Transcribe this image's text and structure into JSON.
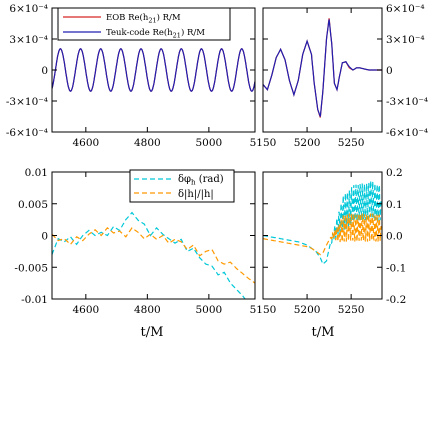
{
  "chart_data": [
    {
      "panel": "top-left",
      "type": "line",
      "xlim": [
        4490,
        5150
      ],
      "ylim": [
        -0.0006,
        0.0006
      ],
      "xticks": [
        {
          "value": 4600,
          "label": "4600"
        },
        {
          "value": 4800,
          "label": "4800"
        },
        {
          "value": 5000,
          "label": "5000"
        }
      ],
      "yticks": [
        {
          "value": 0.0006,
          "label": "6×10⁻⁴"
        },
        {
          "value": 0.0003,
          "label": "3×10⁻⁴"
        },
        {
          "value": 0,
          "label": "0"
        },
        {
          "value": -0.0003,
          "label": "-3×10⁻⁴"
        },
        {
          "value": -0.0006,
          "label": "-6×10⁻⁴"
        }
      ],
      "legend": "top-left",
      "series": [
        {
          "name": "EOB Re(h21) R/M",
          "color": "#d62728",
          "style": "solid",
          "model": {
            "amplitude": 0.000205,
            "period": 65.5,
            "phase_x": 4501
          }
        },
        {
          "name": "Teuk-code Re(h21) R/M",
          "color": "#2020b0",
          "style": "solid",
          "model": {
            "amplitude": 0.000205,
            "period": 65.5,
            "phase_x": 4501
          }
        }
      ]
    },
    {
      "panel": "top-right",
      "type": "line",
      "xlim": [
        5150,
        5285
      ],
      "ylim": [
        -0.0006,
        0.0006
      ],
      "xticks": [
        {
          "value": 5150,
          "label": "5150"
        },
        {
          "value": 5200,
          "label": "5200"
        },
        {
          "value": 5250,
          "label": "5250"
        }
      ],
      "yticks": [
        {
          "value": 0.0006,
          "label": "6×10⁻⁴"
        },
        {
          "value": 0.0003,
          "label": "3×10⁻⁴"
        },
        {
          "value": 0,
          "label": "0"
        },
        {
          "value": -0.0003,
          "label": "-3×10⁻⁴"
        },
        {
          "value": -0.0006,
          "label": "-6×10⁻⁴"
        }
      ],
      "series": [
        {
          "name": "EOB Re(h21) R/M",
          "color": "#d62728",
          "style": "solid",
          "x": [
            5150,
            5155,
            5160,
            5165,
            5170,
            5175,
            5180,
            5185,
            5190,
            5195,
            5200,
            5205,
            5208,
            5212,
            5215,
            5218,
            5222,
            5225,
            5228,
            5231,
            5234,
            5237,
            5240,
            5244,
            5248,
            5252,
            5256,
            5260,
            5265,
            5270,
            5275,
            5280,
            5285
          ],
          "y": [
            -0.00014,
            -0.00019,
            -5e-05,
            0.00012,
            0.0002,
            0.0001,
            -0.0001,
            -0.00024,
            -0.0001,
            0.00015,
            0.00028,
            0.00015,
            -0.00012,
            -0.00038,
            -0.00046,
            -0.0002,
            0.0003,
            0.0005,
            0.00025,
            -0.00013,
            -0.00019,
            -5e-05,
            7e-05,
            8e-05,
            2e-05,
            0.0,
            2e-05,
            2e-05,
            1e-05,
            0.0,
            0.0,
            0.0,
            0.0
          ]
        },
        {
          "name": "Teuk-code Re(h21) R/M",
          "color": "#2020b0",
          "style": "solid",
          "x": [
            5150,
            5155,
            5160,
            5165,
            5170,
            5175,
            5180,
            5185,
            5190,
            5195,
            5200,
            5205,
            5208,
            5212,
            5215,
            5218,
            5222,
            5225,
            5228,
            5231,
            5234,
            5237,
            5240,
            5244,
            5248,
            5252,
            5256,
            5260,
            5265,
            5270,
            5275,
            5280,
            5285
          ],
          "y": [
            -0.00014,
            -0.00019,
            -5e-05,
            0.00012,
            0.0002,
            0.0001,
            -0.0001,
            -0.00024,
            -0.0001,
            0.00015,
            0.00028,
            0.00015,
            -0.00012,
            -0.00038,
            -0.00045,
            -0.0002,
            0.0003,
            0.00049,
            0.00025,
            -0.00013,
            -0.00019,
            -5e-05,
            7e-05,
            8e-05,
            3e-05,
            0.0,
            2e-05,
            2e-05,
            1e-05,
            0.0,
            0.0,
            0.0,
            0.0
          ]
        }
      ]
    },
    {
      "panel": "bottom-left",
      "type": "line",
      "xlim": [
        4490,
        5150
      ],
      "ylim": [
        -0.01,
        0.01
      ],
      "xlabel": "t/M",
      "xticks": [
        {
          "value": 4600,
          "label": "4600"
        },
        {
          "value": 4800,
          "label": "4800"
        },
        {
          "value": 5000,
          "label": "5000"
        }
      ],
      "yticks": [
        {
          "value": 0.01,
          "label": "0.01"
        },
        {
          "value": 0.005,
          "label": "0.005"
        },
        {
          "value": 0,
          "label": "0"
        },
        {
          "value": -0.005,
          "label": "-0.005"
        },
        {
          "value": -0.01,
          "label": "-0.01"
        }
      ],
      "legend": "top-center",
      "series": [
        {
          "name": "δφh (rad)",
          "color": "#00c8d8",
          "style": "dashed",
          "x": [
            4490,
            4510,
            4530,
            4550,
            4570,
            4590,
            4610,
            4630,
            4650,
            4670,
            4690,
            4710,
            4730,
            4750,
            4770,
            4790,
            4810,
            4830,
            4850,
            4870,
            4890,
            4910,
            4930,
            4950,
            4970,
            4990,
            5010,
            5030,
            5050,
            5070,
            5090,
            5110,
            5130,
            5150
          ],
          "y": [
            -0.003,
            -0.0005,
            -0.001,
            -0.0002,
            -0.0014,
            0.0,
            0.0008,
            0.0,
            0.0005,
            0.0,
            0.0014,
            0.0008,
            0.0025,
            0.0036,
            0.0024,
            0.0018,
            0.0,
            0.0012,
            0.0002,
            -0.0005,
            -0.0012,
            -0.0006,
            -0.0025,
            -0.002,
            -0.0035,
            -0.0045,
            -0.0048,
            -0.0062,
            -0.0058,
            -0.0075,
            -0.0085,
            -0.0095,
            -0.0108,
            -0.0118
          ]
        },
        {
          "name": "δ|h|/|h|",
          "color": "#ff9900",
          "style": "dashed",
          "x": [
            4490,
            4510,
            4530,
            4550,
            4570,
            4590,
            4610,
            4630,
            4650,
            4670,
            4690,
            4710,
            4730,
            4750,
            4770,
            4790,
            4810,
            4830,
            4850,
            4870,
            4890,
            4910,
            4930,
            4950,
            4970,
            4990,
            5010,
            5030,
            5050,
            5070,
            5090,
            5110,
            5130,
            5150
          ],
          "y": [
            0.0002,
            -0.0008,
            -0.0005,
            -0.0014,
            -0.0002,
            -0.0008,
            0.0002,
            0.0009,
            0.0,
            0.0012,
            0.0004,
            0.0007,
            -0.0002,
            0.0012,
            0.0005,
            -0.0005,
            0.0002,
            -0.0006,
            0.0,
            -0.0012,
            -0.0006,
            -0.001,
            -0.0022,
            -0.0015,
            -0.0032,
            -0.0025,
            -0.0022,
            -0.004,
            -0.0045,
            -0.0042,
            -0.0052,
            -0.006,
            -0.0068,
            -0.0075
          ]
        }
      ]
    },
    {
      "panel": "bottom-right",
      "type": "line",
      "xlim": [
        5150,
        5285
      ],
      "ylim": [
        -0.2,
        0.2
      ],
      "xlabel": "t/M",
      "xticks": [
        {
          "value": 5150,
          "label": "5150"
        },
        {
          "value": 5200,
          "label": "5200"
        },
        {
          "value": 5250,
          "label": "5250"
        }
      ],
      "yticks": [
        {
          "value": 0.2,
          "label": "0.2"
        },
        {
          "value": 0.1,
          "label": "0.1"
        },
        {
          "value": 0,
          "label": "0.0"
        },
        {
          "value": -0.1,
          "label": "-0.1"
        },
        {
          "value": -0.2,
          "label": "-0.2"
        }
      ],
      "series": [
        {
          "name": "δφh (rad)",
          "color": "#00c8d8",
          "style": "dashed",
          "x": [
            5150,
            5160,
            5170,
            5180,
            5190,
            5200,
            5205,
            5210,
            5215,
            5218,
            5222,
            5226,
            5230,
            5236,
            5242,
            5248,
            5254,
            5260,
            5266,
            5272,
            5278,
            5284
          ],
          "y": [
            0.0,
            -0.005,
            -0.01,
            -0.015,
            -0.02,
            -0.03,
            -0.04,
            -0.05,
            -0.07,
            -0.09,
            -0.08,
            -0.03,
            0.0,
            0.04,
            0.07,
            0.09,
            0.1,
            0.11,
            0.1,
            0.12,
            0.1,
            0.11
          ],
          "oscillation": {
            "start_x": 5226,
            "amplitude": 0.06,
            "period": 2.4
          }
        },
        {
          "name": "δ|h|/|h|",
          "color": "#ff9900",
          "style": "dashed",
          "x": [
            5150,
            5160,
            5170,
            5180,
            5190,
            5200,
            5205,
            5210,
            5215,
            5218,
            5222,
            5226,
            5230,
            5236,
            5242,
            5248,
            5254,
            5260,
            5266,
            5272,
            5278,
            5284
          ],
          "y": [
            -0.01,
            -0.015,
            -0.02,
            -0.025,
            -0.03,
            -0.035,
            -0.04,
            -0.05,
            -0.06,
            -0.055,
            -0.03,
            -0.01,
            0.0,
            0.01,
            0.02,
            0.03,
            0.02,
            0.03,
            0.02,
            0.03,
            0.02,
            0.03
          ],
          "oscillation": {
            "start_x": 5226,
            "amplitude": 0.045,
            "period": 2.4
          }
        }
      ]
    }
  ],
  "legend_top": {
    "entry1": {
      "prefix": "EOB Re(h",
      "sub": "21",
      "suffix": ") R/M"
    },
    "entry2": {
      "prefix": "Teuk-code Re(h",
      "sub": "21",
      "suffix": ") R/M"
    }
  },
  "legend_bottom": {
    "entry1": {
      "prefix": "δφ",
      "sub": "h",
      "suffix": " (rad)"
    },
    "entry2": {
      "text": "δ|h|/|h|"
    }
  },
  "xlabels": {
    "left": "t/M",
    "right": "t/M"
  }
}
